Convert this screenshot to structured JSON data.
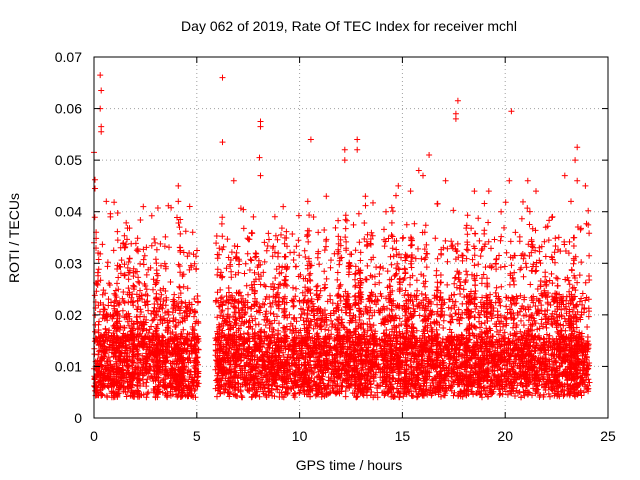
{
  "chart_data": {
    "type": "scatter",
    "title": "Day 062 of 2019, Rate Of TEC Index for receiver mchl",
    "xlabel": "GPS time / hours",
    "ylabel": "ROTI / TECUs",
    "xlim": [
      0,
      25
    ],
    "ylim": [
      0,
      0.07
    ],
    "xticks": [
      0,
      5,
      10,
      15,
      20,
      25
    ],
    "yticks": [
      0,
      0.01,
      0.02,
      0.03,
      0.04,
      0.05,
      0.06,
      0.07
    ],
    "xtick_labels": [
      "0",
      "5",
      "10",
      "15",
      "20",
      "25"
    ],
    "ytick_labels": [
      "0",
      "0.01",
      "0.02",
      "0.03",
      "0.04",
      "0.05",
      "0.06",
      "0.07"
    ],
    "grid": true,
    "marker": "+",
    "color": "#ff0000",
    "series": [
      {
        "name": "ROTI",
        "segments": [
          {
            "x_start": 0.0,
            "x_end": 5.1,
            "base": 0.012,
            "points": [
              [
                0.0,
                0.0515
              ],
              [
                0.05,
                0.0462
              ],
              [
                0.05,
                0.0445
              ],
              [
                0.3,
                0.0665
              ],
              [
                0.35,
                0.0635
              ],
              [
                0.3,
                0.06
              ],
              [
                0.35,
                0.0565
              ],
              [
                0.35,
                0.0555
              ],
              [
                0.0,
                0.034
              ],
              [
                0.1,
                0.036
              ],
              [
                0.2,
                0.032
              ],
              [
                0.6,
                0.042
              ],
              [
                0.8,
                0.039
              ],
              [
                2.4,
                0.041
              ],
              [
                4.1,
                0.045
              ],
              [
                4.1,
                0.042
              ],
              [
                4.8,
                0.036
              ],
              [
                1.5,
                0.033
              ]
            ]
          },
          {
            "x_start": 5.9,
            "x_end": 24.1,
            "base": 0.012,
            "points": [
              [
                6.25,
                0.066
              ],
              [
                6.25,
                0.0535
              ],
              [
                6.8,
                0.046
              ],
              [
                8.1,
                0.0575
              ],
              [
                8.1,
                0.0565
              ],
              [
                8.05,
                0.0505
              ],
              [
                8.1,
                0.047
              ],
              [
                10.55,
                0.054
              ],
              [
                10.4,
                0.042
              ],
              [
                12.2,
                0.052
              ],
              [
                12.2,
                0.05
              ],
              [
                12.8,
                0.054
              ],
              [
                12.8,
                0.052
              ],
              [
                14.8,
                0.045
              ],
              [
                15.4,
                0.044
              ],
              [
                16.3,
                0.051
              ],
              [
                16.0,
                0.047
              ],
              [
                17.7,
                0.0615
              ],
              [
                17.6,
                0.059
              ],
              [
                17.6,
                0.058
              ],
              [
                20.3,
                0.0595
              ],
              [
                20.2,
                0.046
              ],
              [
                21.5,
                0.044
              ],
              [
                23.5,
                0.0525
              ],
              [
                23.4,
                0.05
              ],
              [
                23.5,
                0.046
              ],
              [
                23.9,
                0.045
              ],
              [
                18.5,
                0.044
              ],
              [
                19.8,
                0.04
              ],
              [
                22.3,
                0.039
              ],
              [
                23.2,
                0.042
              ],
              [
                11.3,
                0.043
              ],
              [
                13.2,
                0.043
              ],
              [
                9.2,
                0.041
              ],
              [
                14.2,
                0.04
              ],
              [
                15.8,
                0.048
              ],
              [
                17.1,
                0.046
              ],
              [
                19.2,
                0.044
              ],
              [
                21.1,
                0.046
              ],
              [
                22.9,
                0.047
              ]
            ]
          }
        ]
      }
    ]
  }
}
